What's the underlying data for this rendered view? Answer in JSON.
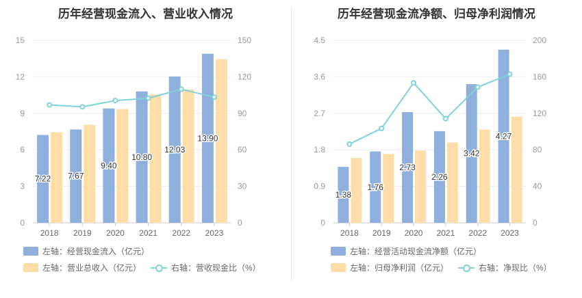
{
  "colors": {
    "bar": "#8fb0dc",
    "bar2": "#ffdda8",
    "line": "#7dd3d8",
    "axis": "#999999",
    "grid": "#e9eef5"
  },
  "chart_data": [
    {
      "type": "bar",
      "title": "历年经营现金流入、营业收入情况",
      "categories": [
        "2018",
        "2019",
        "2020",
        "2021",
        "2022",
        "2023"
      ],
      "series": [
        {
          "name": "左轴：经营现金流入（亿元）",
          "axis": "left",
          "type": "bar",
          "values": [
            7.22,
            7.67,
            9.4,
            10.8,
            12.03,
            13.9
          ],
          "labels": [
            "7.22",
            "7.67",
            "9.40",
            "10.80",
            "12.03",
            "13.90"
          ]
        },
        {
          "name": "左轴：营业总收入（亿元）",
          "axis": "left",
          "type": "bar",
          "values": [
            7.45,
            8.05,
            9.35,
            10.55,
            10.95,
            13.45
          ]
        },
        {
          "name": "右轴：营收现金比（%）",
          "axis": "right",
          "type": "line",
          "values": [
            96.9,
            95.3,
            100.5,
            102.4,
            109.8,
            103.3
          ]
        }
      ],
      "left_axis": {
        "min": 0,
        "max": 15,
        "ticks": [
          "0",
          "3",
          "6",
          "9",
          "12",
          "15"
        ]
      },
      "right_axis": {
        "min": 0,
        "max": 150,
        "ticks": [
          "0",
          "30",
          "60",
          "90",
          "120",
          "150"
        ]
      },
      "grid": true,
      "legend": "bottom"
    },
    {
      "type": "bar",
      "title": "历年经营现金流净额、归母净利润情况",
      "categories": [
        "2018",
        "2019",
        "2020",
        "2021",
        "2022",
        "2023"
      ],
      "series": [
        {
          "name": "左轴：经营活动现金流净额（亿元）",
          "axis": "left",
          "type": "bar",
          "values": [
            1.38,
            1.76,
            2.73,
            2.26,
            3.42,
            4.27
          ],
          "labels": [
            "1.38",
            "1.76",
            "2.73",
            "2.26",
            "3.42",
            "4.27"
          ]
        },
        {
          "name": "左轴：归母净利润（亿元）",
          "axis": "left",
          "type": "bar",
          "values": [
            1.6,
            1.7,
            1.78,
            1.98,
            2.3,
            2.62
          ]
        },
        {
          "name": "右轴：净现比（%）",
          "axis": "right",
          "type": "line",
          "values": [
            86.3,
            103.5,
            153.4,
            114.1,
            148.7,
            162.9
          ]
        }
      ],
      "left_axis": {
        "min": 0,
        "max": 4.5,
        "ticks": [
          "0",
          "0.9",
          "1.8",
          "2.7",
          "3.6",
          "4.5"
        ]
      },
      "right_axis": {
        "min": 0,
        "max": 200,
        "ticks": [
          "0",
          "40",
          "80",
          "120",
          "160",
          "200"
        ]
      },
      "grid": true,
      "legend": "bottom"
    }
  ]
}
